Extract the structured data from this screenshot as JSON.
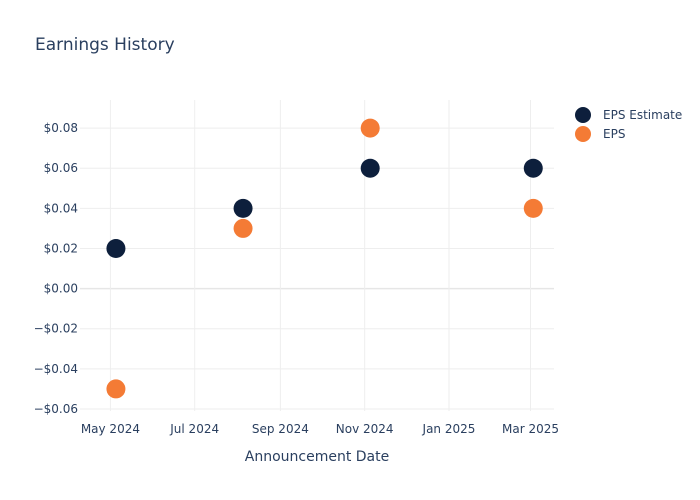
{
  "chart_data": {
    "type": "scatter",
    "title": "Earnings History",
    "xlabel": "Announcement Date",
    "ylabel": "",
    "x_ticks": [
      {
        "date": "2024-05-01",
        "label": "May 2024"
      },
      {
        "date": "2024-07-01",
        "label": "Jul 2024"
      },
      {
        "date": "2024-09-01",
        "label": "Sep 2024"
      },
      {
        "date": "2024-11-01",
        "label": "Nov 2024"
      },
      {
        "date": "2025-01-01",
        "label": "Jan 2025"
      },
      {
        "date": "2025-03-01",
        "label": "Mar 2025"
      }
    ],
    "xlim": [
      "2024-04-09",
      "2025-03-18"
    ],
    "y_ticks": [
      {
        "value": 0.08,
        "label": "$0.08"
      },
      {
        "value": 0.06,
        "label": "$0.06"
      },
      {
        "value": 0.04,
        "label": "$0.04"
      },
      {
        "value": 0.02,
        "label": "$0.02"
      },
      {
        "value": 0.0,
        "label": "$0.00"
      },
      {
        "value": -0.02,
        "label": "−$0.02"
      },
      {
        "value": -0.04,
        "label": "−$0.04"
      },
      {
        "value": -0.06,
        "label": "−$0.06"
      }
    ],
    "ylim": [
      -0.061,
      0.094
    ],
    "grid": true,
    "legend_position": "top-right",
    "series": [
      {
        "name": "EPS Estimate",
        "color": "#0d1f3c",
        "points": [
          {
            "x": "2024-05-05",
            "y": 0.02
          },
          {
            "x": "2024-08-05",
            "y": 0.04
          },
          {
            "x": "2024-11-05",
            "y": 0.06
          },
          {
            "x": "2025-03-03",
            "y": 0.06
          }
        ]
      },
      {
        "name": "EPS",
        "color": "#f47b35",
        "points": [
          {
            "x": "2024-05-05",
            "y": -0.05
          },
          {
            "x": "2024-08-05",
            "y": 0.03
          },
          {
            "x": "2024-11-05",
            "y": 0.08
          },
          {
            "x": "2025-03-03",
            "y": 0.04
          }
        ]
      }
    ]
  }
}
